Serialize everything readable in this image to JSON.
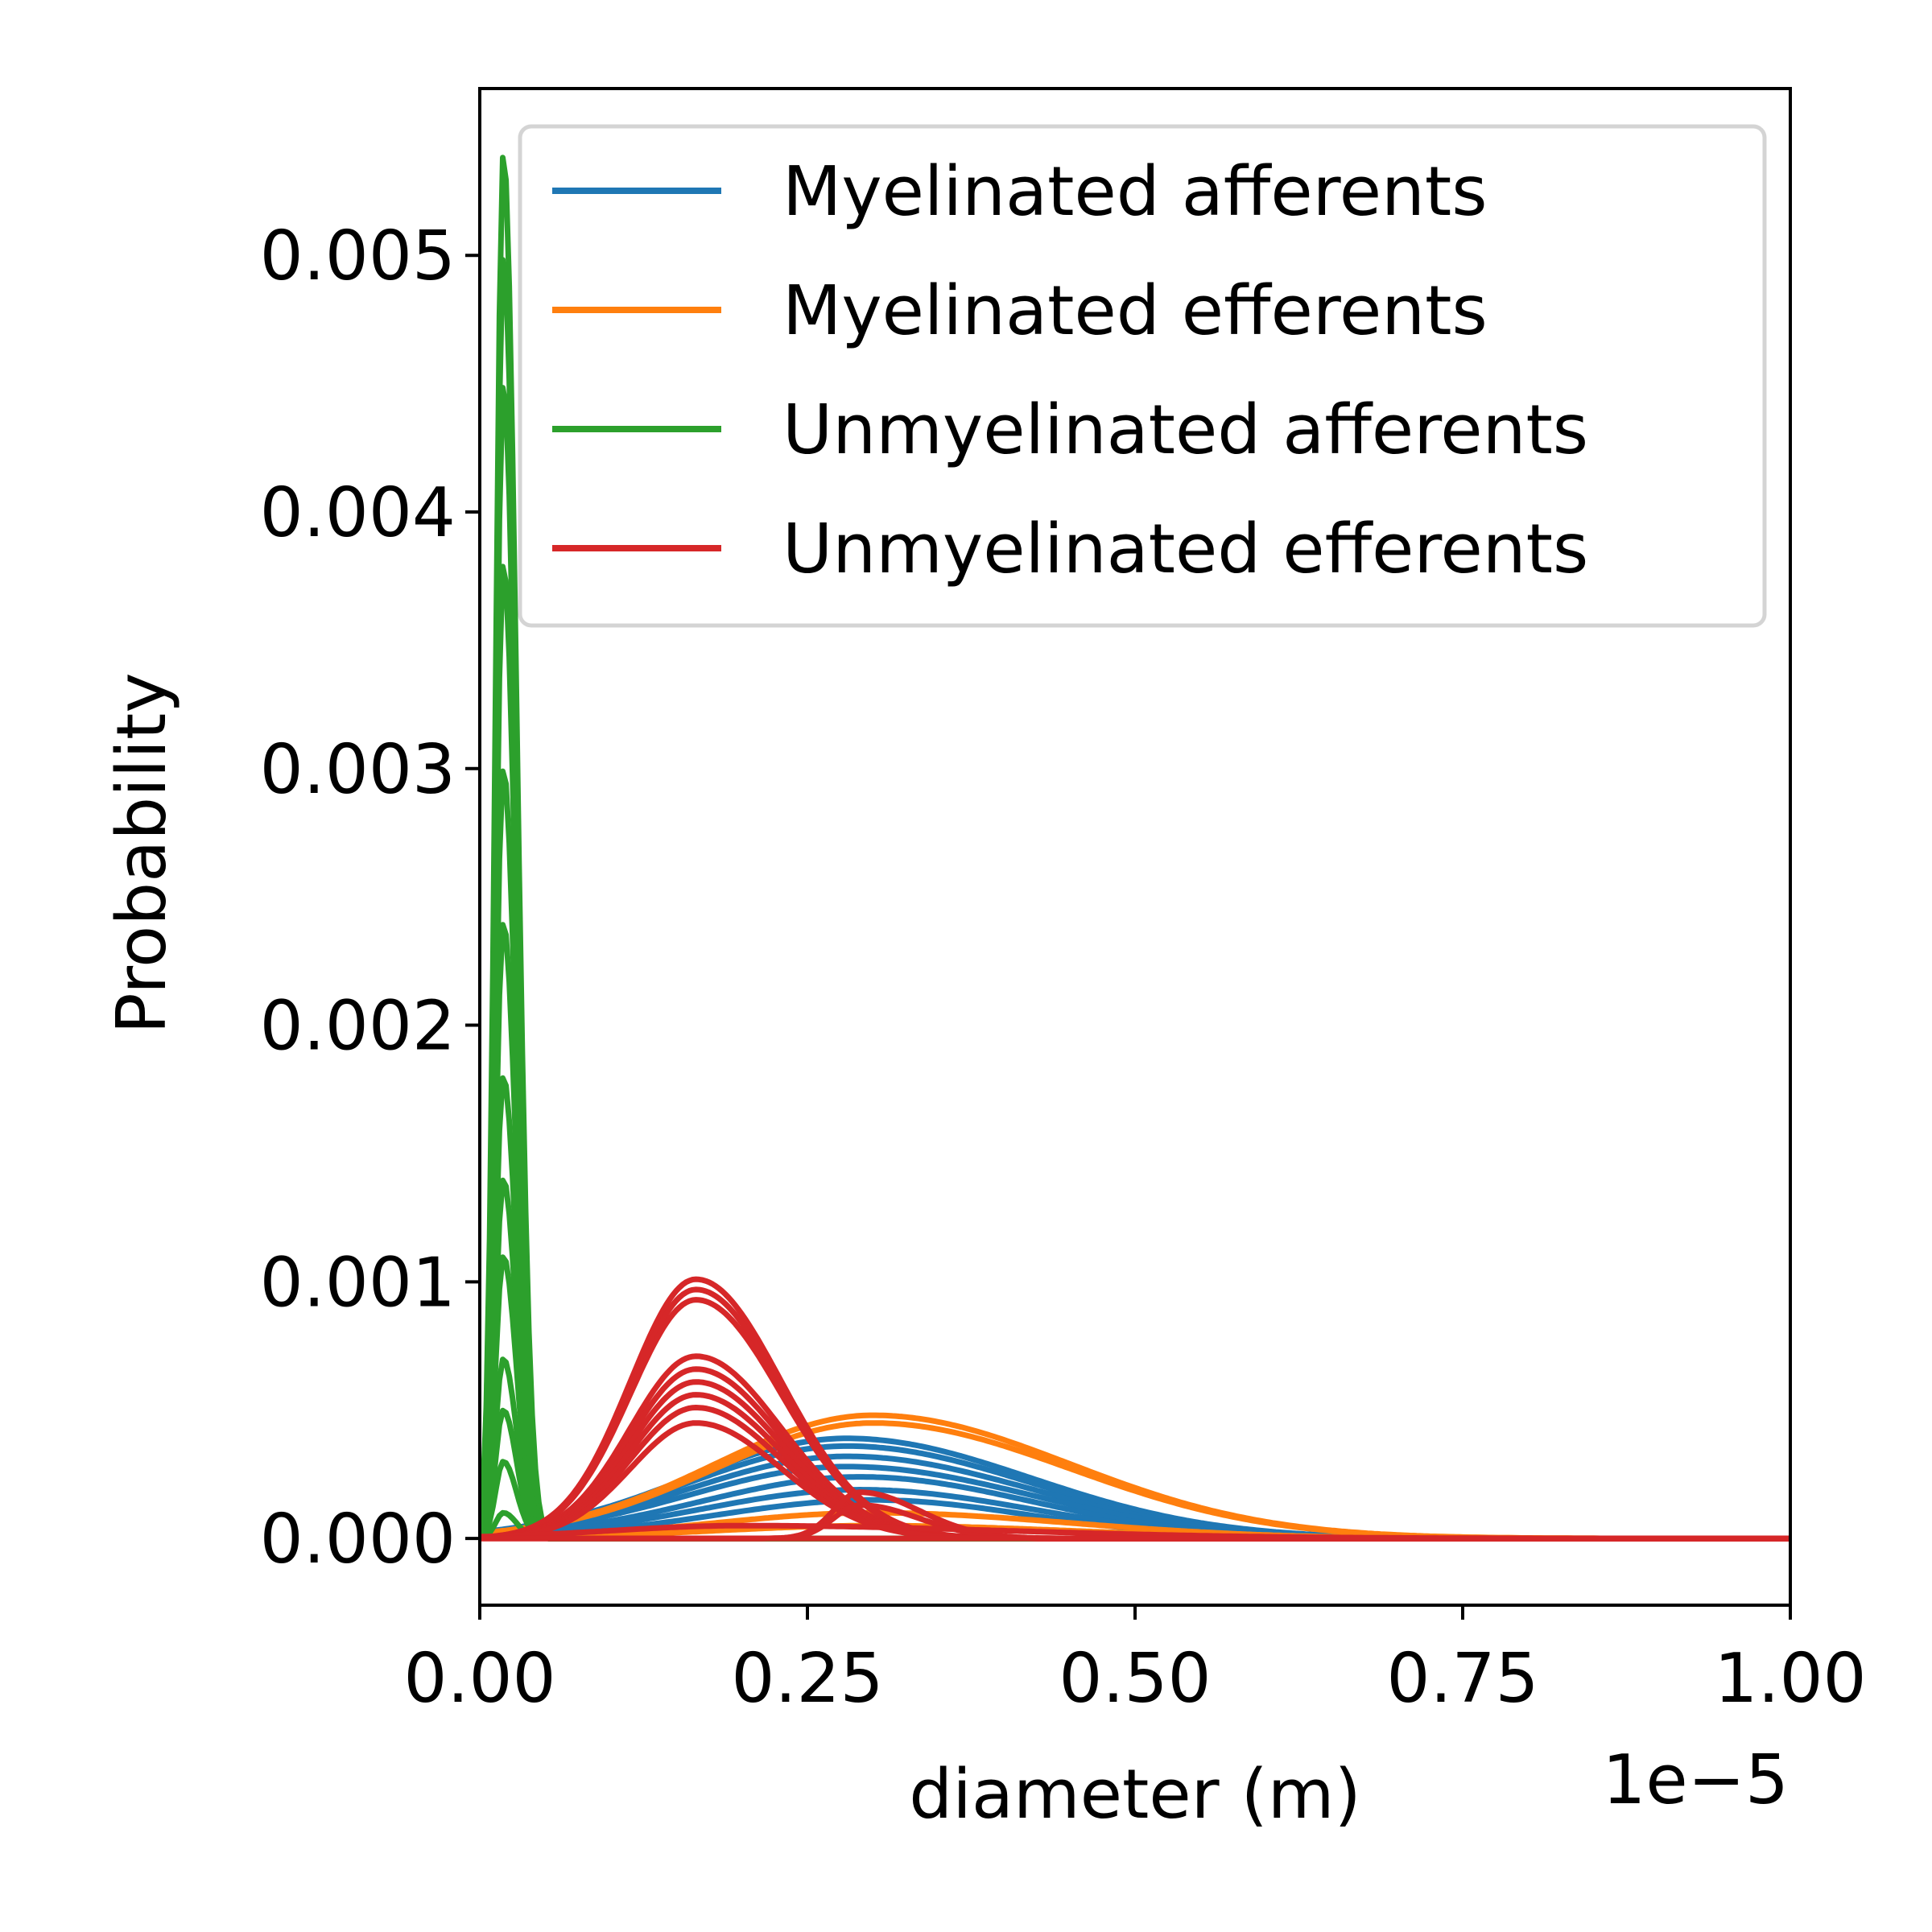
{
  "chart_data": {
    "type": "line",
    "title": "",
    "xlabel": "diameter (m)",
    "ylabel": "Probability",
    "x_offset_text": "1e−5",
    "xlim": [
      0.0,
      1.0
    ],
    "ylim": [
      -0.00026,
      0.00565
    ],
    "x_ticks": [
      0.0,
      0.25,
      0.5,
      0.75,
      1.0
    ],
    "x_tick_labels": [
      "0.00",
      "0.25",
      "0.50",
      "0.75",
      "1.00"
    ],
    "y_ticks": [
      0.0,
      0.001,
      0.002,
      0.003,
      0.004,
      0.005
    ],
    "y_tick_labels": [
      "0.000",
      "0.001",
      "0.002",
      "0.003",
      "0.004",
      "0.005"
    ],
    "grid": false,
    "legend_position": "upper right",
    "series": [
      {
        "name": "Myelinated afferents",
        "color": "#1f77b4",
        "curves": [
          {
            "mode": 0.28,
            "peak": 0.00039,
            "width_left": 0.12,
            "width_right": 0.14,
            "end": 1.0
          },
          {
            "mode": 0.28,
            "peak": 0.00036,
            "width_left": 0.12,
            "width_right": 0.14,
            "end": 1.0
          },
          {
            "mode": 0.28,
            "peak": 0.00032,
            "width_left": 0.12,
            "width_right": 0.14,
            "end": 1.0
          },
          {
            "mode": 0.28,
            "peak": 0.00028,
            "width_left": 0.12,
            "width_right": 0.14,
            "end": 1.0
          },
          {
            "mode": 0.29,
            "peak": 0.00024,
            "width_left": 0.12,
            "width_right": 0.13,
            "end": 1.0
          },
          {
            "mode": 0.29,
            "peak": 0.00019,
            "width_left": 0.12,
            "width_right": 0.13,
            "end": 1.0
          },
          {
            "mode": 0.3,
            "peak": 0.00015,
            "width_left": 0.12,
            "width_right": 0.12,
            "end": 1.0
          }
        ]
      },
      {
        "name": "Myelinated efferents",
        "color": "#ff7f0e",
        "curves": [
          {
            "mode": 0.3,
            "peak": 0.00048,
            "width_left": 0.12,
            "width_right": 0.15,
            "end": 1.0
          },
          {
            "mode": 0.3,
            "peak": 0.00045,
            "width_left": 0.12,
            "width_right": 0.15,
            "end": 1.0
          },
          {
            "mode": 0.3,
            "peak": 0.0001,
            "width_left": 0.12,
            "width_right": 0.15,
            "end": 1.0
          },
          {
            "mode": 0.3,
            "peak": 5e-05,
            "width_left": 0.12,
            "width_right": 0.15,
            "end": 1.0
          }
        ]
      },
      {
        "name": "Unmyelinated afferents",
        "color": "#2ca02c",
        "curves": [
          {
            "mode": 0.018,
            "peak": 0.0054,
            "width_left": 0.006,
            "width_right": 0.01,
            "end": 0.05
          },
          {
            "mode": 0.018,
            "peak": 0.005,
            "width_left": 0.006,
            "width_right": 0.01,
            "end": 0.05
          },
          {
            "mode": 0.018,
            "peak": 0.0045,
            "width_left": 0.006,
            "width_right": 0.01,
            "end": 0.05
          },
          {
            "mode": 0.018,
            "peak": 0.0038,
            "width_left": 0.006,
            "width_right": 0.01,
            "end": 0.05
          },
          {
            "mode": 0.018,
            "peak": 0.003,
            "width_left": 0.006,
            "width_right": 0.01,
            "end": 0.05
          },
          {
            "mode": 0.018,
            "peak": 0.0024,
            "width_left": 0.006,
            "width_right": 0.01,
            "end": 0.05
          },
          {
            "mode": 0.018,
            "peak": 0.0018,
            "width_left": 0.006,
            "width_right": 0.01,
            "end": 0.05
          },
          {
            "mode": 0.018,
            "peak": 0.0014,
            "width_left": 0.006,
            "width_right": 0.01,
            "end": 0.05
          },
          {
            "mode": 0.018,
            "peak": 0.0011,
            "width_left": 0.006,
            "width_right": 0.01,
            "end": 0.05
          },
          {
            "mode": 0.018,
            "peak": 0.0007,
            "width_left": 0.006,
            "width_right": 0.01,
            "end": 0.05
          },
          {
            "mode": 0.018,
            "peak": 0.0005,
            "width_left": 0.006,
            "width_right": 0.01,
            "end": 0.05
          },
          {
            "mode": 0.018,
            "peak": 0.0003,
            "width_left": 0.006,
            "width_right": 0.01,
            "end": 0.05
          },
          {
            "mode": 0.018,
            "peak": 0.0001,
            "width_left": 0.006,
            "width_right": 0.01,
            "end": 0.05
          }
        ]
      },
      {
        "name": "Unmyelinated efferents",
        "color": "#d62728",
        "curves": [
          {
            "mode": 0.165,
            "peak": 0.00101,
            "width_left": 0.05,
            "width_right": 0.065,
            "end": 1.0
          },
          {
            "mode": 0.165,
            "peak": 0.00097,
            "width_left": 0.05,
            "width_right": 0.065,
            "end": 1.0
          },
          {
            "mode": 0.165,
            "peak": 0.00093,
            "width_left": 0.05,
            "width_right": 0.065,
            "end": 1.0
          },
          {
            "mode": 0.165,
            "peak": 0.00071,
            "width_left": 0.05,
            "width_right": 0.065,
            "end": 1.0
          },
          {
            "mode": 0.165,
            "peak": 0.00066,
            "width_left": 0.05,
            "width_right": 0.065,
            "end": 1.0
          },
          {
            "mode": 0.165,
            "peak": 0.00061,
            "width_left": 0.05,
            "width_right": 0.065,
            "end": 1.0
          },
          {
            "mode": 0.165,
            "peak": 0.00056,
            "width_left": 0.05,
            "width_right": 0.065,
            "end": 1.0
          },
          {
            "mode": 0.165,
            "peak": 0.00051,
            "width_left": 0.05,
            "width_right": 0.065,
            "end": 1.0
          },
          {
            "mode": 0.165,
            "peak": 0.00045,
            "width_left": 0.05,
            "width_right": 0.065,
            "end": 1.0
          },
          {
            "mode": 0.29,
            "peak": 0.00018,
            "width_left": 0.02,
            "width_right": 0.045,
            "end": 1.0
          },
          {
            "mode": 0.29,
            "peak": 0.00013,
            "width_left": 0.02,
            "width_right": 0.045,
            "end": 1.0
          },
          {
            "mode": 0.2,
            "peak": 5e-05,
            "width_left": 0.1,
            "width_right": 0.2,
            "end": 1.0
          },
          {
            "mode": 0.5,
            "peak": 0.0,
            "width_left": 0.1,
            "width_right": 0.1,
            "end": 1.0
          }
        ]
      }
    ]
  }
}
